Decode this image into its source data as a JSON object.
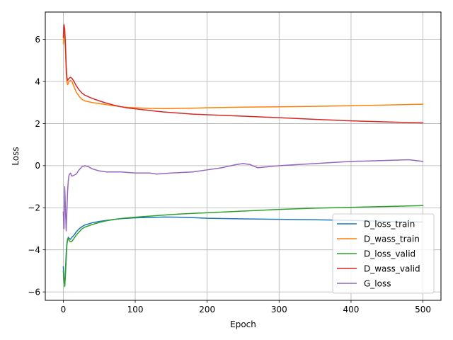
{
  "chart_data": {
    "type": "line",
    "title": "",
    "xlabel": "Epoch",
    "ylabel": "Loss",
    "xlim": [
      -25,
      525
    ],
    "ylim": [
      -6.4,
      7.3
    ],
    "xticks": [
      0,
      100,
      200,
      300,
      400,
      500
    ],
    "yticks": [
      -6,
      -4,
      -2,
      0,
      2,
      4,
      6
    ],
    "grid": true,
    "legend_position": "lower-right",
    "series": [
      {
        "name": "D_loss_train",
        "color": "#1f77b4",
        "x": [
          0,
          1,
          2,
          3,
          4,
          5,
          6,
          7,
          8,
          10,
          12,
          15,
          18,
          22,
          26,
          30,
          40,
          50,
          60,
          70,
          80,
          90,
          100,
          120,
          140,
          160,
          180,
          200,
          250,
          300,
          350,
          400,
          450,
          500
        ],
        "y": [
          -4.8,
          -5.4,
          -5.7,
          -5.0,
          -4.2,
          -3.7,
          -3.5,
          -3.4,
          -3.45,
          -3.5,
          -3.4,
          -3.3,
          -3.15,
          -3.0,
          -2.9,
          -2.82,
          -2.72,
          -2.65,
          -2.6,
          -2.56,
          -2.52,
          -2.5,
          -2.48,
          -2.46,
          -2.44,
          -2.45,
          -2.47,
          -2.5,
          -2.53,
          -2.55,
          -2.57,
          -2.6,
          -2.65,
          -2.68
        ]
      },
      {
        "name": "D_wass_train",
        "color": "#ff7f0e",
        "x": [
          0,
          1,
          2,
          3,
          4,
          5,
          6,
          7,
          8,
          10,
          12,
          15,
          18,
          22,
          26,
          30,
          40,
          50,
          60,
          70,
          80,
          90,
          100,
          120,
          140,
          160,
          180,
          200,
          250,
          300,
          350,
          400,
          450,
          500
        ],
        "y": [
          5.8,
          6.4,
          6.1,
          5.5,
          4.5,
          4.0,
          3.85,
          3.9,
          4.0,
          4.05,
          4.0,
          3.75,
          3.5,
          3.3,
          3.15,
          3.08,
          3.0,
          2.95,
          2.9,
          2.85,
          2.8,
          2.77,
          2.75,
          2.72,
          2.71,
          2.72,
          2.73,
          2.75,
          2.78,
          2.8,
          2.82,
          2.85,
          2.88,
          2.92
        ]
      },
      {
        "name": "D_loss_valid",
        "color": "#2ca02c",
        "x": [
          0,
          1,
          2,
          3,
          4,
          5,
          6,
          7,
          8,
          10,
          12,
          15,
          18,
          22,
          26,
          30,
          40,
          50,
          60,
          70,
          80,
          90,
          100,
          120,
          140,
          160,
          180,
          200,
          250,
          300,
          350,
          400,
          450,
          500
        ],
        "y": [
          -5.0,
          -5.5,
          -5.75,
          -5.2,
          -4.5,
          -3.8,
          -3.5,
          -3.45,
          -3.55,
          -3.62,
          -3.6,
          -3.45,
          -3.3,
          -3.15,
          -3.0,
          -2.92,
          -2.8,
          -2.7,
          -2.62,
          -2.56,
          -2.51,
          -2.48,
          -2.45,
          -2.4,
          -2.35,
          -2.3,
          -2.27,
          -2.24,
          -2.16,
          -2.08,
          -2.02,
          -1.98,
          -1.94,
          -1.9
        ]
      },
      {
        "name": "D_wass_valid",
        "color": "#d62728",
        "x": [
          0,
          1,
          2,
          3,
          4,
          5,
          6,
          7,
          8,
          10,
          12,
          15,
          18,
          22,
          26,
          30,
          40,
          50,
          60,
          70,
          80,
          90,
          100,
          120,
          140,
          160,
          180,
          200,
          250,
          300,
          350,
          400,
          450,
          500
        ],
        "y": [
          6.1,
          6.7,
          6.5,
          5.8,
          4.8,
          4.2,
          4.05,
          4.1,
          4.15,
          4.2,
          4.15,
          4.0,
          3.8,
          3.6,
          3.45,
          3.35,
          3.2,
          3.08,
          2.97,
          2.88,
          2.8,
          2.74,
          2.7,
          2.62,
          2.55,
          2.5,
          2.45,
          2.42,
          2.35,
          2.28,
          2.2,
          2.13,
          2.08,
          2.03
        ]
      },
      {
        "name": "G_loss",
        "color": "#9467bd",
        "x": [
          0,
          1,
          2,
          3,
          4,
          5,
          6,
          7,
          8,
          10,
          12,
          15,
          18,
          22,
          26,
          30,
          35,
          40,
          50,
          60,
          70,
          80,
          100,
          120,
          130,
          150,
          180,
          200,
          220,
          240,
          250,
          260,
          270,
          300,
          350,
          400,
          450,
          480,
          500
        ],
        "y": [
          -2.2,
          -3.0,
          -1.0,
          -2.0,
          -3.1,
          -2.2,
          -1.2,
          -0.7,
          -0.45,
          -0.35,
          -0.5,
          -0.45,
          -0.4,
          -0.2,
          -0.05,
          0.0,
          -0.05,
          -0.15,
          -0.25,
          -0.3,
          -0.3,
          -0.3,
          -0.35,
          -0.35,
          -0.4,
          -0.35,
          -0.3,
          -0.2,
          -0.1,
          0.05,
          0.1,
          0.05,
          -0.1,
          0.0,
          0.1,
          0.2,
          0.25,
          0.28,
          0.2
        ]
      }
    ]
  }
}
